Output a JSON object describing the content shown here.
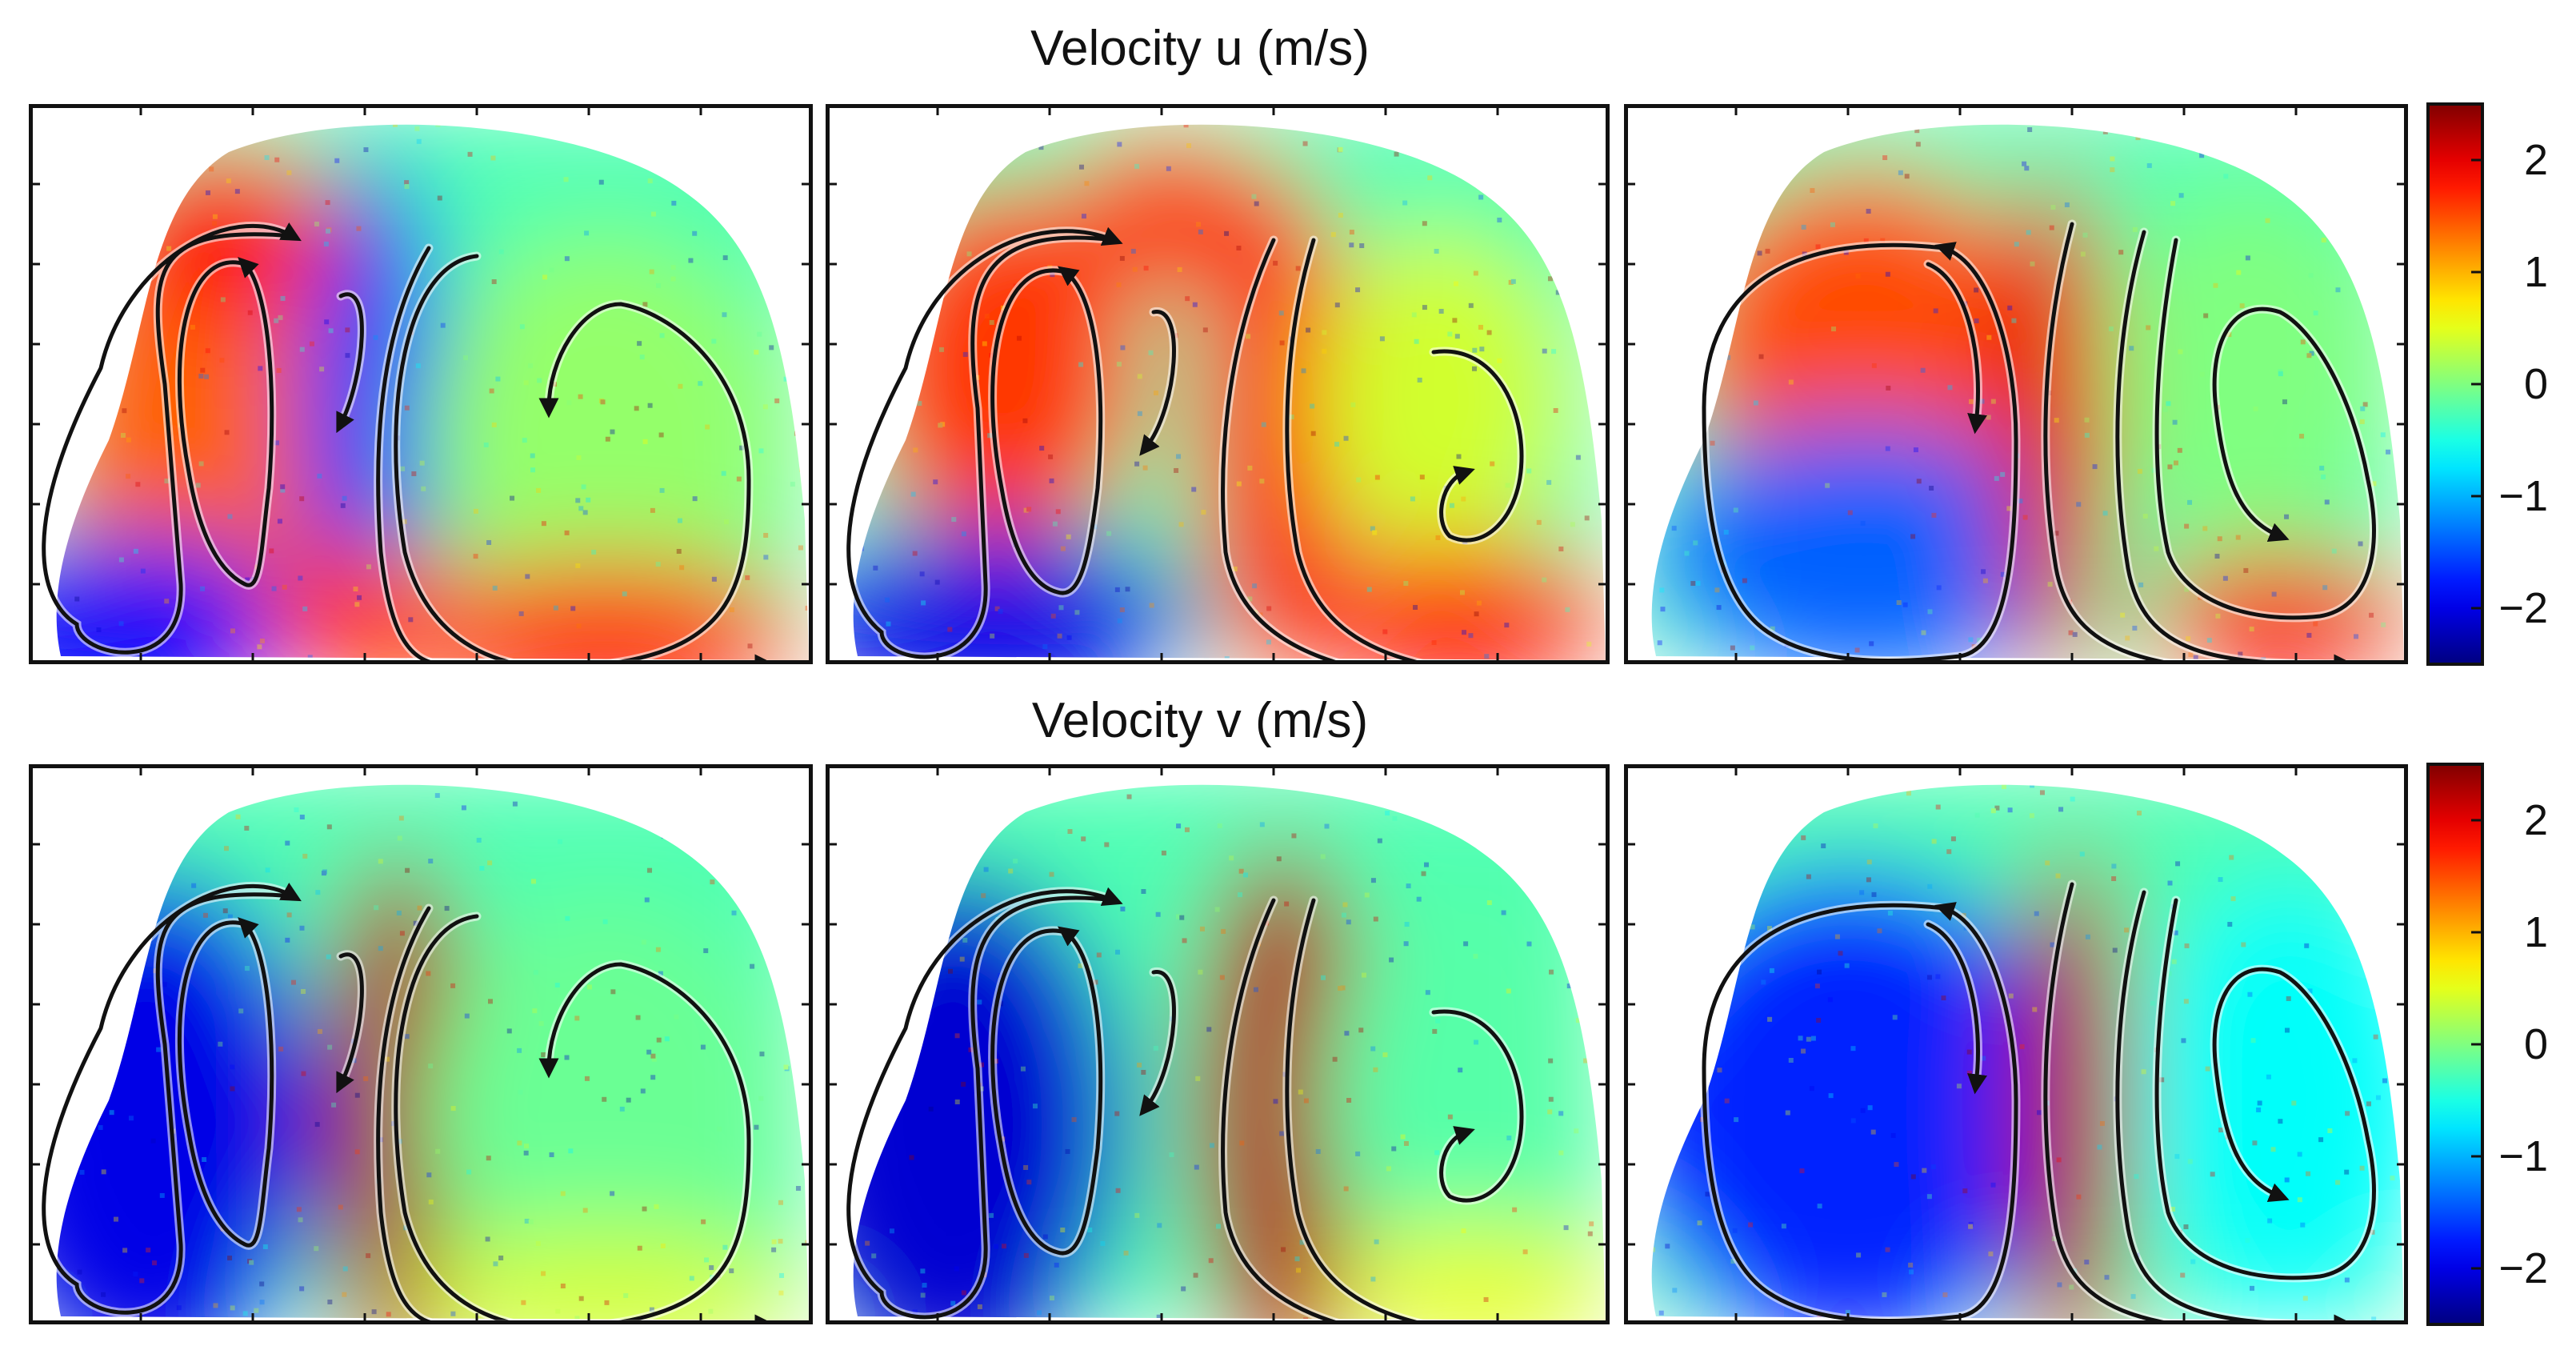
{
  "figure": {
    "row_titles": [
      "Velocity u (m/s)",
      "Velocity v (m/s)"
    ]
  },
  "chart_data": {
    "type": "heatmap",
    "title": "",
    "rows": [
      {
        "title": "Velocity u (m/s)",
        "variable": "u",
        "unit": "m/s"
      },
      {
        "title": "Velocity v (m/s)",
        "variable": "v",
        "unit": "m/s"
      }
    ],
    "columns": 3,
    "colorbar": {
      "colormap": "jet",
      "vmin": -2.5,
      "vmax": 2.5,
      "ticks": [
        2,
        1,
        0,
        -1,
        -2
      ],
      "tick_labels": [
        "2",
        "1",
        "0",
        "−1",
        "−2"
      ]
    },
    "xlabel": "",
    "ylabel": "",
    "annotations": "black streamline arrows indicating recirculating vortices in each panel"
  }
}
